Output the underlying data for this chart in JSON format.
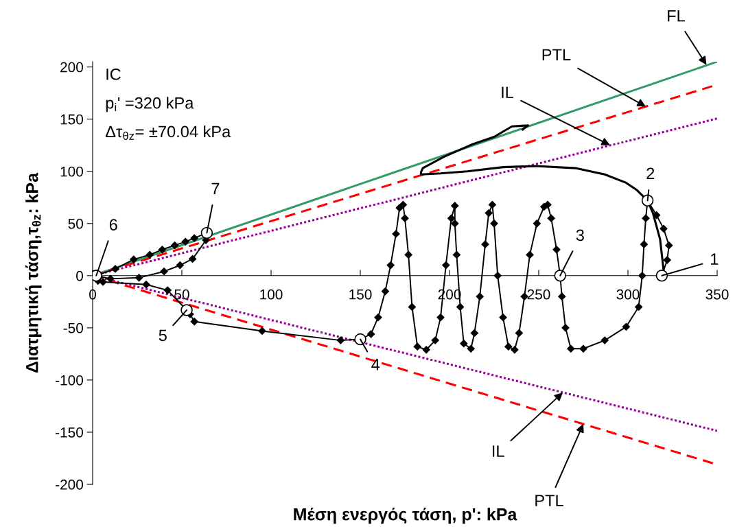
{
  "chart_data": {
    "type": "line",
    "xlabel": "Μέση ενεργός τάση, p': kPa",
    "ylabel": "Διατμητική τάση,τ$_{θz}$: kPa",
    "xlim": [
      0,
      350
    ],
    "ylim": [
      -200,
      205
    ],
    "xticks": [
      0,
      50,
      100,
      150,
      200,
      250,
      300,
      350
    ],
    "yticks": [
      -200,
      -150,
      -100,
      -50,
      0,
      50,
      100,
      150,
      200
    ],
    "grid": false,
    "legend": false,
    "series": [
      {
        "type": "line",
        "color": "#339966",
        "line_style": "solid",
        "marker": "none",
        "x": [
          0,
          350
        ],
        "values": [
          0,
          205
        ]
      },
      {
        "type": "line",
        "color": "#ff0000",
        "line_style": "dashed",
        "marker": "none",
        "x": [
          0,
          350
        ],
        "values": [
          0,
          183
        ]
      },
      {
        "type": "line",
        "color": "#990099",
        "line_style": "dotted",
        "marker": "none",
        "x": [
          0,
          350
        ],
        "values": [
          0,
          150.6
        ]
      },
      {
        "type": "line",
        "color": "#990099",
        "line_style": "dotted",
        "marker": "none",
        "x": [
          0,
          350
        ],
        "values": [
          0,
          -148.7
        ]
      },
      {
        "type": "line",
        "color": "#ff0000",
        "line_style": "dashed",
        "marker": "none",
        "x": [
          0,
          350
        ],
        "values": [
          0,
          -181
        ]
      },
      {
        "type": "line",
        "color": "#000000",
        "line_style": "solid",
        "marker": "diamond",
        "x": [
          319,
          322,
          323,
          320,
          316,
          311,
          310,
          309,
          308,
          306,
          299,
          287,
          275,
          268,
          265,
          263,
          262,
          260,
          257,
          255,
          253,
          249,
          245,
          242,
          239,
          236.5,
          233,
          230,
          227,
          225,
          224,
          222,
          220,
          217,
          214,
          212,
          208,
          206,
          204,
          203,
          203,
          201,
          198,
          195,
          192,
          187,
          182,
          179,
          177,
          175,
          174,
          172,
          170,
          167,
          164,
          160,
          156,
          150,
          139,
          95,
          57,
          54.6,
          52.7,
          42,
          30,
          5.8,
          3,
          2,
          10,
          26,
          40,
          49,
          56,
          63.5,
          64,
          57,
          52,
          46,
          39,
          32,
          23,
          12.7,
          2
        ],
        "values": [
          0,
          15,
          29,
          45,
          58,
          72,
          55,
          30,
          0,
          -30,
          -49,
          -62,
          -70,
          -70,
          -50,
          -20,
          0,
          25,
          55,
          68,
          66,
          50,
          20,
          -20,
          -55,
          -71,
          -68,
          -40,
          0,
          50,
          68,
          60,
          30,
          -20,
          -55,
          -70,
          -65,
          -30,
          20,
          50,
          67,
          55,
          10,
          -40,
          -62,
          -71,
          -68,
          -30,
          20,
          55,
          68,
          65,
          40,
          10,
          -15,
          -40,
          -56,
          -61,
          -62,
          -53,
          -44,
          -37,
          -33,
          -14,
          -8.5,
          -6,
          -5,
          0,
          -3,
          -2,
          4,
          10,
          16,
          34,
          41,
          36,
          32.5,
          29,
          25,
          20,
          15.6,
          6.5,
          0
        ]
      },
      {
        "type": "line",
        "color": "#000000",
        "line_style": "solid",
        "marker": "none",
        "x": [
          320,
          318,
          314,
          311,
          305,
          299,
          287,
          271,
          248,
          230,
          210,
          195,
          184,
          184,
          185,
          197,
          213,
          225,
          235,
          244,
          241
        ],
        "values": [
          5,
          35,
          60,
          72,
          82,
          89,
          97,
          103,
          105,
          104,
          100,
          98,
          97,
          99,
          103,
          114,
          126,
          133,
          143,
          144,
          140
        ]
      },
      {
        "type": "scatter",
        "color": "#000000",
        "marker": "circle",
        "x": [
          319,
          311,
          262,
          150,
          52.7,
          2,
          64
        ],
        "values": [
          0,
          72,
          0,
          -61,
          -33,
          0,
          41
        ]
      }
    ],
    "annotations": [
      "IC",
      "p$_{i}$' =320 kPa",
      "Δτ$_{θz}$= ±70.04 kPa",
      {
        "text": "FL",
        "x": 344,
        "y": 202
      },
      {
        "text": "PTL",
        "x": 310,
        "y": 162
      },
      {
        "text": "IL",
        "x": 290,
        "y": 125
      },
      {
        "text": "IL",
        "x": 263.5,
        "y": -112
      },
      {
        "text": "PTL",
        "x": 275,
        "y": -142
      },
      {
        "text": "1",
        "x": 319,
        "y": 0
      },
      {
        "text": "2",
        "x": 311,
        "y": 72
      },
      {
        "text": "3",
        "x": 262,
        "y": 0
      },
      {
        "text": "4",
        "x": 150,
        "y": -61
      },
      {
        "text": "5",
        "x": 52.7,
        "y": -33
      },
      {
        "text": "6",
        "x": 2,
        "y": 0
      },
      {
        "text": "7",
        "x": 64,
        "y": 41
      }
    ]
  }
}
